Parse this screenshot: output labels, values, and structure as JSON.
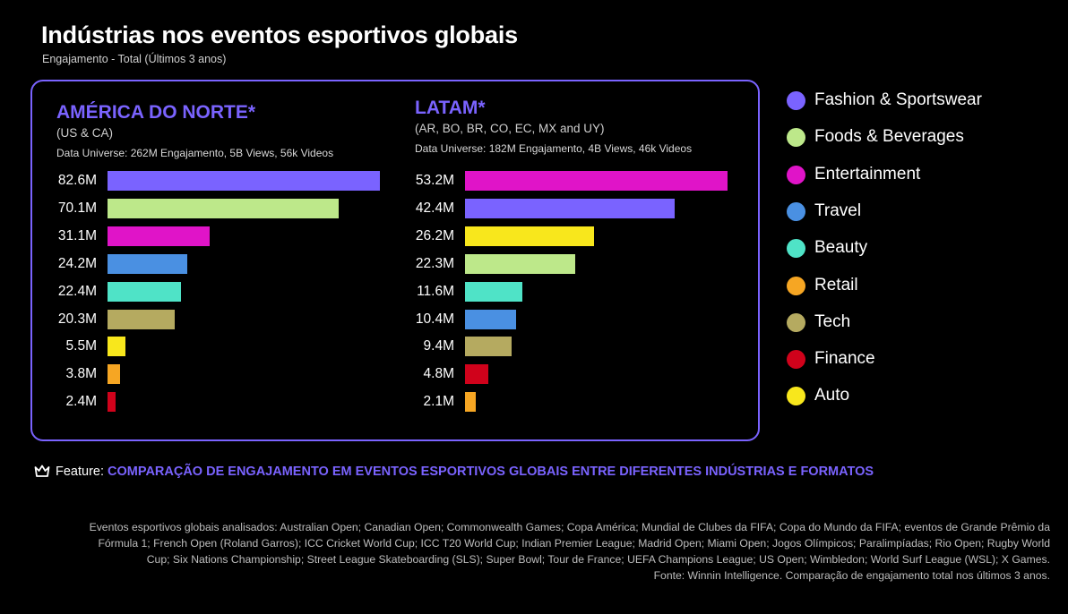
{
  "header": {
    "title": "Indústrias nos eventos esportivos globais",
    "subtitle": "Engajamento - Total (Últimos 3 anos)"
  },
  "colors": {
    "accent": "#7a63ff",
    "Fashion & Sportswear": "#7a63ff",
    "Foods & Beverages": "#bde88a",
    "Entertainment": "#e014c8",
    "Travel": "#4a90e2",
    "Beauty": "#4fe3c7",
    "Retail": "#f6a623",
    "Tech": "#b5aa60",
    "Finance": "#d0021b",
    "Auto": "#f8e71c"
  },
  "legend": {
    "items": [
      "Fashion & Sportswear",
      "Foods & Beverages",
      "Entertainment",
      "Travel",
      "Beauty",
      "Retail",
      "Tech",
      "Finance",
      "Auto"
    ]
  },
  "chart_data": [
    {
      "type": "bar",
      "orientation": "horizontal",
      "title": "AMÉRICA DO NORTE*",
      "subtitle": "(US & CA)",
      "universe": "Data Universe: 262M Engajamento, 5B Views, 56k Videos",
      "unit": "M",
      "xlim": [
        0,
        82.6
      ],
      "categories": [
        "Fashion & Sportswear",
        "Foods & Beverages",
        "Entertainment",
        "Travel",
        "Beauty",
        "Tech",
        "Auto",
        "Retail",
        "Finance"
      ],
      "values": [
        82.6,
        70.1,
        31.1,
        24.2,
        22.4,
        20.3,
        5.5,
        3.8,
        2.4
      ],
      "labels": [
        "82.6M",
        "70.1M",
        "31.1M",
        "24.2M",
        "22.4M",
        "20.3M",
        "5.5M",
        "3.8M",
        "2.4M"
      ]
    },
    {
      "type": "bar",
      "orientation": "horizontal",
      "title": "LATAM*",
      "subtitle": "(AR, BO, BR, CO, EC, MX and  UY)",
      "universe": "Data Universe: 182M Engajamento, 4B Views, 46k Videos",
      "unit": "M",
      "xlim": [
        0,
        53.2
      ],
      "categories": [
        "Entertainment",
        "Fashion & Sportswear",
        "Auto",
        "Foods & Beverages",
        "Beauty",
        "Travel",
        "Tech",
        "Finance",
        "Retail"
      ],
      "values": [
        53.2,
        42.4,
        26.2,
        22.3,
        11.6,
        10.4,
        9.4,
        4.8,
        2.1
      ],
      "labels": [
        "53.2M",
        "42.4M",
        "26.2M",
        "22.3M",
        "11.6M",
        "10.4M",
        "9.4M",
        "4.8M",
        "2.1M"
      ]
    }
  ],
  "feature": {
    "prefix": "Feature:",
    "text": "COMPARAÇÃO DE ENGAJAMENTO EM EVENTOS ESPORTIVOS GLOBAIS ENTRE DIFERENTES INDÚSTRIAS E FORMATOS",
    "icon": "crown-icon"
  },
  "footnote": {
    "lines": [
      "Eventos esportivos globais analisados: Australian Open; Canadian Open; Commonwealth Games; Copa América; Mundial de Clubes da FIFA; Copa do Mundo da FIFA; eventos de Grande Prêmio da",
      "Fórmula 1; French Open (Roland Garros); ICC Cricket World Cup; ICC T20 World Cup; Indian Premier League; Madrid Open; Miami Open; Jogos Olímpicos; Paralimpíadas; Rio Open; Rugby World",
      "Cup; Six Nations Championship; Street League Skateboarding (SLS); Super Bowl; Tour de France; UEFA Champions League; US Open; Wimbledon; World Surf League (WSL); X Games.",
      "Fonte: Winnin Intelligence. Comparação de engajamento total nos últimos 3 anos."
    ]
  }
}
